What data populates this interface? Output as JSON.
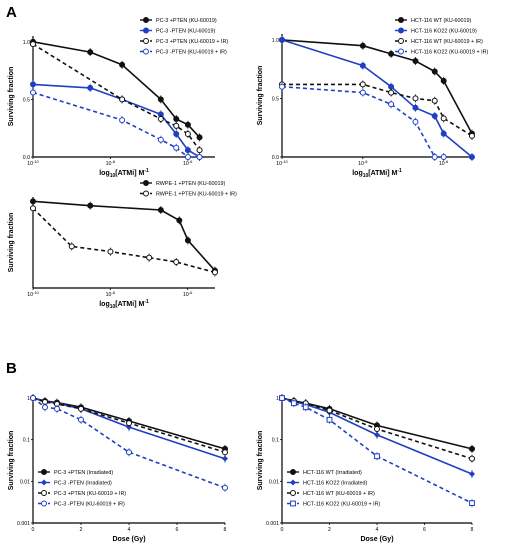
{
  "panel_labels": [
    "A",
    "B"
  ],
  "colors": {
    "black": "#111111",
    "blue": "#1f3fc4"
  },
  "chart_data": [
    {
      "type": "line",
      "xscale": "log",
      "xlabel": "log10[ATMi] M-1",
      "ylabel": "Surviving fraction",
      "xticks": [
        "10-10",
        "10-8",
        "10-6"
      ],
      "yticks": [
        "0.0",
        "0.5",
        "1.0"
      ],
      "ylim": [
        0,
        1.05
      ],
      "legend_position": "top-right",
      "series": [
        {
          "name": "PC-3 +PTEN (KU-60019)",
          "color": "#111111",
          "marker": "filled-circle",
          "dashed": false,
          "x": [
            "1e-10",
            "3e-9",
            "2e-8",
            "2e-7",
            "5e-7",
            "1e-6",
            "2e-6"
          ],
          "y": [
            1.0,
            0.91,
            0.8,
            0.5,
            0.33,
            0.28,
            0.17
          ]
        },
        {
          "name": "PC-3 -PTEN (KU-60019)",
          "color": "#1f3fc4",
          "marker": "filled-circle",
          "dashed": false,
          "x": [
            "1e-10",
            "3e-9",
            "2e-8",
            "2e-7",
            "5e-7",
            "1e-6",
            "2e-6"
          ],
          "y": [
            0.63,
            0.6,
            0.5,
            0.37,
            0.2,
            0.06,
            0.0
          ]
        },
        {
          "name": "PC-3 +PTEN (KU-60019 + IR)",
          "color": "#111111",
          "marker": "open-circle",
          "dashed": true,
          "x": [
            "1e-10",
            "2e-8",
            "2e-7",
            "5e-7",
            "1e-6",
            "2e-6"
          ],
          "y": [
            0.98,
            0.5,
            0.33,
            0.27,
            0.2,
            0.06
          ]
        },
        {
          "name": "PC-3 -PTEN (KU-60019 + IR)",
          "color": "#1f3fc4",
          "marker": "open-circle",
          "dashed": true,
          "x": [
            "1e-10",
            "2e-8",
            "2e-7",
            "5e-7",
            "1e-6",
            "2e-6"
          ],
          "y": [
            0.56,
            0.32,
            0.15,
            0.08,
            0.0,
            0.0
          ]
        }
      ]
    },
    {
      "type": "line",
      "xscale": "log",
      "xlabel": "log10[ATMi] M-1",
      "ylabel": "Surviving fraction",
      "xticks": [
        "10-10",
        "10-8",
        "10-6"
      ],
      "yticks": [
        "0.0",
        "0.5",
        "1.0"
      ],
      "ylim": [
        0,
        1.05
      ],
      "legend_position": "top-right",
      "series": [
        {
          "name": "HCT-116 WT (KU-60019)",
          "color": "#111111",
          "marker": "filled-circle",
          "dashed": false,
          "x": [
            "1e-10",
            "1e-8",
            "5e-8",
            "2e-7",
            "6e-7",
            "1e-6",
            "5e-6"
          ],
          "y": [
            1.0,
            0.95,
            0.88,
            0.82,
            0.73,
            0.65,
            0.2
          ]
        },
        {
          "name": "HCT-116 KO22 (KU-60019)",
          "color": "#1f3fc4",
          "marker": "filled-circle",
          "dashed": false,
          "x": [
            "1e-10",
            "1e-8",
            "5e-8",
            "2e-7",
            "6e-7",
            "1e-6",
            "5e-6"
          ],
          "y": [
            1.0,
            0.78,
            0.6,
            0.42,
            0.35,
            0.2,
            0.0
          ]
        },
        {
          "name": "HCT-116 WT (KU-60019 + IR)",
          "color": "#111111",
          "marker": "open-circle",
          "dashed": true,
          "x": [
            "1e-10",
            "1e-8",
            "5e-8",
            "2e-7",
            "6e-7",
            "1e-6",
            "5e-6"
          ],
          "y": [
            0.62,
            0.62,
            0.55,
            0.5,
            0.48,
            0.33,
            0.18
          ]
        },
        {
          "name": "HCT-116 KO22 (KU-60019 + IR)",
          "color": "#1f3fc4",
          "marker": "open-circle",
          "dashed": true,
          "x": [
            "1e-10",
            "1e-8",
            "5e-8",
            "2e-7",
            "6e-7",
            "1e-6"
          ],
          "y": [
            0.6,
            0.55,
            0.45,
            0.3,
            0.0,
            0.0
          ]
        }
      ]
    },
    {
      "type": "line",
      "xscale": "log",
      "xlabel": "log10[ATMi] M-1",
      "ylabel": "Surviving fraction",
      "xticks": [
        "10-10",
        "10-8",
        "10-6"
      ],
      "yticks": [],
      "ylim": [
        0,
        1.05
      ],
      "legend_position": "top-right",
      "series": [
        {
          "name": "RWPE-1 +PTEN (KU-60019)",
          "color": "#111111",
          "marker": "filled-circle",
          "dashed": false,
          "x": [
            "1e-10",
            "3e-9",
            "2e-7",
            "6e-7",
            "1e-6",
            "5e-6"
          ],
          "y": [
            1.0,
            0.95,
            0.9,
            0.78,
            0.55,
            0.2
          ]
        },
        {
          "name": "RWPE-1 +PTEN (KU-60019 + IR)",
          "color": "#111111",
          "marker": "open-circle",
          "dashed": true,
          "x": [
            "1e-10",
            "1e-9",
            "1e-8",
            "1e-7",
            "5e-7",
            "5e-6"
          ],
          "y": [
            0.92,
            0.48,
            0.42,
            0.35,
            0.3,
            0.18
          ]
        }
      ]
    },
    {
      "type": "line",
      "yscale": "log",
      "xlabel": "Dose (Gy)",
      "ylabel": "Surviving fraction",
      "xticks": [
        "0",
        "2",
        "4",
        "6",
        "8"
      ],
      "yticks": [
        "0.001",
        "0.01",
        "0.1",
        "1"
      ],
      "xlim": [
        0,
        8
      ],
      "ylim": [
        0.001,
        1
      ],
      "legend_position": "bottom-left",
      "series": [
        {
          "name": "PC-3 +PTEN (Irradiated)",
          "color": "#111111",
          "marker": "filled-circle",
          "dashed": false,
          "x": [
            0,
            0.5,
            1,
            2,
            4,
            8
          ],
          "y": [
            1.0,
            0.85,
            0.78,
            0.6,
            0.28,
            0.06
          ]
        },
        {
          "name": "PC-3 -PTEN (Irradiated)",
          "color": "#1f3fc4",
          "marker": "filled-diamond",
          "dashed": false,
          "x": [
            0,
            0.5,
            1,
            2,
            4,
            8
          ],
          "y": [
            1.0,
            0.82,
            0.75,
            0.55,
            0.2,
            0.035
          ]
        },
        {
          "name": "PC-3 +PTEN (KU-60019 + IR)",
          "color": "#111111",
          "marker": "open-circle",
          "dashed": true,
          "x": [
            0,
            0.5,
            1,
            2,
            4,
            8
          ],
          "y": [
            1.0,
            0.8,
            0.72,
            0.55,
            0.25,
            0.05
          ]
        },
        {
          "name": "PC-3 -PTEN (KU-60019 + IR)",
          "color": "#1f3fc4",
          "marker": "open-circle",
          "dashed": true,
          "x": [
            0,
            0.5,
            1,
            2,
            4,
            8
          ],
          "y": [
            1.0,
            0.6,
            0.55,
            0.3,
            0.05,
            0.007
          ]
        }
      ]
    },
    {
      "type": "line",
      "yscale": "log",
      "xlabel": "Dose (Gy)",
      "ylabel": "Surviving fraction",
      "xticks": [
        "0",
        "2",
        "4",
        "6",
        "8"
      ],
      "yticks": [
        "0.001",
        "0.01",
        "0.1",
        "1"
      ],
      "xlim": [
        0,
        8
      ],
      "ylim": [
        0.001,
        1
      ],
      "legend_position": "bottom-left",
      "series": [
        {
          "name": "HCT-116 WT (Irradiated)",
          "color": "#111111",
          "marker": "filled-circle",
          "dashed": false,
          "x": [
            0,
            0.5,
            1,
            2,
            4,
            8
          ],
          "y": [
            1.0,
            0.85,
            0.75,
            0.55,
            0.22,
            0.06
          ]
        },
        {
          "name": "HCT-116 KO22 (Irradiated)",
          "color": "#1f3fc4",
          "marker": "filled-diamond",
          "dashed": false,
          "x": [
            0,
            0.5,
            1,
            2,
            4,
            8
          ],
          "y": [
            1.0,
            0.82,
            0.7,
            0.45,
            0.13,
            0.015
          ]
        },
        {
          "name": "HCT-116 WT (KU-60019 + IR)",
          "color": "#111111",
          "marker": "open-circle",
          "dashed": true,
          "x": [
            0,
            0.5,
            1,
            2,
            4,
            8
          ],
          "y": [
            1.0,
            0.85,
            0.75,
            0.5,
            0.18,
            0.035
          ]
        },
        {
          "name": "HCT-116 KO22 (KU-60019 + IR)",
          "color": "#1f3fc4",
          "marker": "open-square",
          "dashed": true,
          "x": [
            0,
            0.5,
            1,
            2,
            4,
            8
          ],
          "y": [
            1.0,
            0.75,
            0.6,
            0.3,
            0.04,
            0.003
          ]
        }
      ]
    }
  ]
}
